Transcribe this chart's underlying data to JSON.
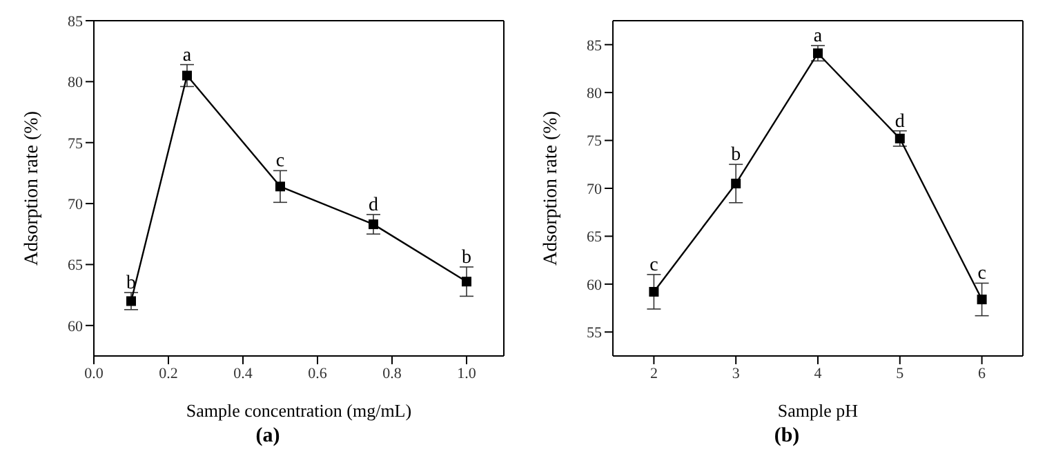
{
  "chart_data": [
    {
      "type": "line",
      "xlabel": "Sample concentration (mg/mL)",
      "ylabel": "Adsorption rate (%)",
      "x": [
        0.1,
        0.25,
        0.5,
        0.75,
        1.0
      ],
      "series": [
        {
          "color": "#000000",
          "values": [
            62.0,
            80.5,
            71.4,
            68.3,
            63.6
          ],
          "errors": [
            0.7,
            0.9,
            1.3,
            0.8,
            1.2
          ]
        }
      ],
      "xlim": [
        0,
        1.1
      ],
      "xticks": [
        {
          "value": 0,
          "label": "0.0"
        },
        0.2,
        0.4,
        0.6,
        0.8,
        {
          "value": 1,
          "label": "1.0"
        }
      ],
      "ylim": [
        57.5,
        85
      ],
      "yticks": [
        60,
        65,
        70,
        75,
        80,
        85
      ],
      "marker": "square",
      "grid": false,
      "legend": false,
      "annotations": [
        {
          "text": "b",
          "x": 0.1,
          "y": 62.7
        },
        {
          "text": "a",
          "x": 0.25,
          "y": 81.4
        },
        {
          "text": "c",
          "x": 0.5,
          "y": 72.7
        },
        {
          "text": "d",
          "x": 0.75,
          "y": 69.1
        },
        {
          "text": "b",
          "x": 1.0,
          "y": 64.8
        },
        "(a)"
      ]
    },
    {
      "type": "line",
      "xlabel": "Sample pH",
      "ylabel": "Adsorption rate (%)",
      "x": [
        2,
        3,
        4,
        5,
        6
      ],
      "series": [
        {
          "color": "#000000",
          "values": [
            59.2,
            70.5,
            84.1,
            75.2,
            58.4
          ],
          "errors": [
            1.8,
            2.0,
            0.8,
            0.8,
            1.7
          ]
        }
      ],
      "xlim": [
        1.5,
        6.5
      ],
      "xticks": [
        2,
        3,
        4,
        5,
        6
      ],
      "ylim": [
        52.5,
        87.5
      ],
      "yticks": [
        55,
        60,
        65,
        70,
        75,
        80,
        85
      ],
      "marker": "square",
      "grid": false,
      "legend": false,
      "annotations": [
        {
          "text": "c",
          "x": 2,
          "y": 61.0
        },
        {
          "text": "b",
          "x": 3,
          "y": 72.5
        },
        {
          "text": "a",
          "x": 4,
          "y": 84.9
        },
        {
          "text": "d",
          "x": 5,
          "y": 76.0
        },
        {
          "text": "c",
          "x": 6,
          "y": 60.1
        },
        "(b)"
      ]
    }
  ]
}
